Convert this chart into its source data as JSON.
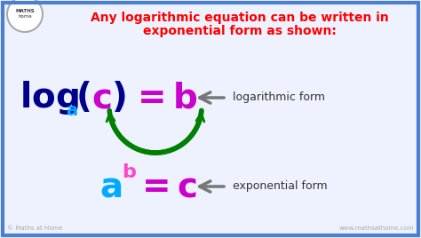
{
  "bg_color": "#eef2ff",
  "border_color": "#4a7fd4",
  "title_line1": "Any logarithmic equation can be written in",
  "title_line2": "exponential form as shown:",
  "title_color": "#ff0000",
  "log_color": "#00008b",
  "paren_color": "#00008b",
  "c_log_color": "#cc00cc",
  "b_log_color": "#cc00cc",
  "a_sub_color": "#00aaff",
  "a_exp_color": "#00aaff",
  "b_sup_color": "#ff44cc",
  "c_exp_color": "#cc00cc",
  "equals_color": "#00008b",
  "arrow_color": "#777777",
  "green_color": "#008000",
  "label_color": "#333333",
  "watermark_color": "#aaaaaa",
  "bottom_left": "© Maths at Home",
  "bottom_right": "www.mathsathome.com"
}
